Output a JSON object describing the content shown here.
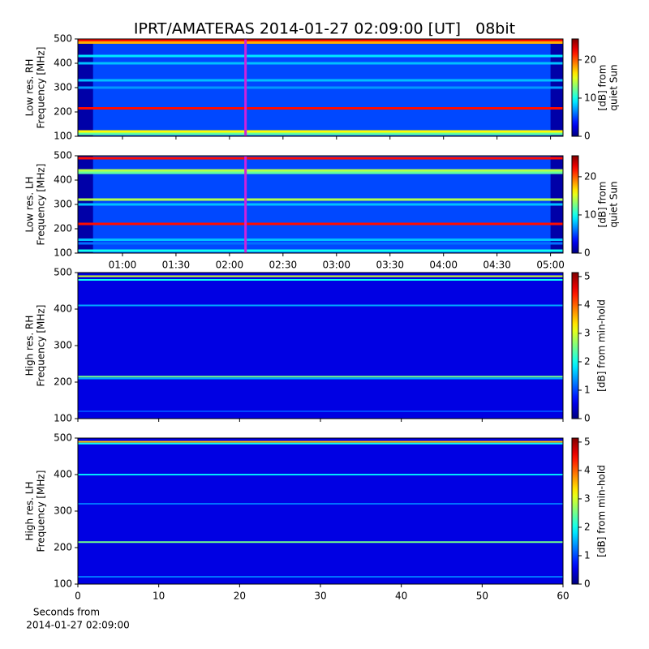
{
  "title": "IPRT/AMATERAS 2014-01-27 02:09:00 [UT]   08bit",
  "chart_data": [
    {
      "type": "heatmap",
      "ylabel": [
        "Low res. RH",
        "Frequency [MHz]"
      ],
      "colorbar_label": [
        "[dB] from",
        "quiet Sun"
      ],
      "xlim": [
        35,
        307
      ],
      "xticks": [
        60,
        90,
        120,
        150,
        180,
        210,
        240,
        270,
        300
      ],
      "ylim": [
        100,
        500
      ],
      "yticks": [
        100,
        200,
        300,
        400,
        500
      ],
      "clim": [
        0,
        25.5
      ],
      "cticks": [
        0,
        10,
        20
      ],
      "colormap": "jet",
      "background": 5,
      "regions": [
        {
          "start": 35,
          "end": 43.5,
          "value": 1
        },
        {
          "start": 300,
          "end": 307,
          "value": 1
        }
      ],
      "bands": [
        {
          "freq": 495,
          "value": 22
        },
        {
          "freq": 485,
          "value": 18
        },
        {
          "freq": 430,
          "value": 9
        },
        {
          "freq": 400,
          "value": 8
        },
        {
          "freq": 330,
          "value": 8
        },
        {
          "freq": 300,
          "value": 7
        },
        {
          "freq": 215,
          "value": 22
        },
        {
          "freq": 120,
          "value": 16
        },
        {
          "freq": 110,
          "value": 12
        }
      ],
      "marker_x": 129,
      "marker_color": "#cc22dd"
    },
    {
      "type": "heatmap",
      "ylabel": [
        "Low res. LH",
        "Frequency [MHz]"
      ],
      "colorbar_label": [
        "[dB] from",
        "quiet Sun"
      ],
      "xlim": [
        35,
        307
      ],
      "xticks": [
        {
          "value": 60,
          "label": "01:00"
        },
        {
          "value": 90,
          "label": "01:30"
        },
        {
          "value": 120,
          "label": "02:00"
        },
        {
          "value": 150,
          "label": "02:30"
        },
        {
          "value": 180,
          "label": "03:00"
        },
        {
          "value": 210,
          "label": "03:30"
        },
        {
          "value": 240,
          "label": "04:00"
        },
        {
          "value": 270,
          "label": "04:30"
        },
        {
          "value": 300,
          "label": "05:00"
        }
      ],
      "ylim": [
        100,
        500
      ],
      "yticks": [
        100,
        200,
        300,
        400,
        500
      ],
      "clim": [
        0,
        25.5
      ],
      "cticks": [
        0,
        10,
        20
      ],
      "colormap": "jet",
      "background": 5,
      "regions": [
        {
          "start": 35,
          "end": 43.5,
          "value": 1
        },
        {
          "start": 300,
          "end": 307,
          "value": 1
        }
      ],
      "bands": [
        {
          "freq": 490,
          "value": 22
        },
        {
          "freq": 440,
          "value": 14
        },
        {
          "freq": 430,
          "value": 12
        },
        {
          "freq": 320,
          "value": 14
        },
        {
          "freq": 300,
          "value": 8
        },
        {
          "freq": 220,
          "value": 22
        },
        {
          "freq": 155,
          "value": 8
        },
        {
          "freq": 140,
          "value": 6
        },
        {
          "freq": 110,
          "value": 10
        }
      ],
      "marker_x": 129,
      "marker_color": "#cc22dd"
    },
    {
      "type": "heatmap",
      "ylabel": [
        "High res. RH",
        "Frequency [MHz]"
      ],
      "colorbar_label": [
        "[dB] from min-hold"
      ],
      "xlim": [
        0,
        60
      ],
      "xticks": [
        0,
        10,
        20,
        30,
        40,
        50,
        60
      ],
      "ylim": [
        100,
        500
      ],
      "yticks": [
        100,
        200,
        300,
        400,
        500
      ],
      "clim": [
        0,
        5.14
      ],
      "cticks": [
        0,
        1,
        2,
        3,
        4,
        5
      ],
      "colormap": "jet",
      "background": 0.5,
      "regions": [],
      "bands": [
        {
          "freq": 490,
          "value": 3
        },
        {
          "freq": 480,
          "value": 2
        },
        {
          "freq": 410,
          "value": 1.5
        },
        {
          "freq": 215,
          "value": 2.5
        },
        {
          "freq": 210,
          "value": 1.5
        },
        {
          "freq": 120,
          "value": 1
        }
      ]
    },
    {
      "type": "heatmap",
      "ylabel": [
        "High res. LH",
        "Frequency [MHz]"
      ],
      "colorbar_label": [
        "[dB] from min-hold"
      ],
      "xlim": [
        0,
        60
      ],
      "xticks": [
        0,
        10,
        20,
        30,
        40,
        50,
        60
      ],
      "xlabel": [
        "Seconds from",
        "2014-01-27 02:09:00"
      ],
      "ylim": [
        100,
        500
      ],
      "yticks": [
        100,
        200,
        300,
        400,
        500
      ],
      "clim": [
        0,
        5.14
      ],
      "cticks": [
        0,
        1,
        2,
        3,
        4,
        5
      ],
      "colormap": "jet",
      "background": 0.5,
      "regions": [],
      "bands": [
        {
          "freq": 490,
          "value": 3.5
        },
        {
          "freq": 485,
          "value": 2
        },
        {
          "freq": 400,
          "value": 1.8
        },
        {
          "freq": 320,
          "value": 1.2
        },
        {
          "freq": 215,
          "value": 2.5
        },
        {
          "freq": 120,
          "value": 1.2
        }
      ]
    }
  ]
}
